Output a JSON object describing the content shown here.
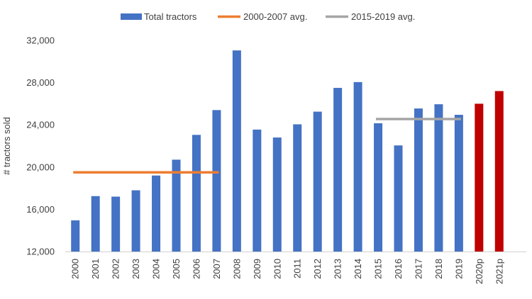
{
  "chart_data": {
    "type": "bar",
    "title": "",
    "xlabel": "",
    "ylabel": "# tractors sold",
    "ylim": [
      12000,
      32000
    ],
    "yticks": [
      12000,
      16000,
      20000,
      24000,
      28000,
      32000
    ],
    "ytick_labels": [
      "12,000",
      "16,000",
      "20,000",
      "24,000",
      "28,000",
      "32,000"
    ],
    "grid": false,
    "legend_position": "top",
    "categories": [
      "2000",
      "2001",
      "2002",
      "2003",
      "2004",
      "2005",
      "2006",
      "2007",
      "2008",
      "2009",
      "2010",
      "2011",
      "2012",
      "2013",
      "2014",
      "2015",
      "2016",
      "2017",
      "2018",
      "2019",
      "2020p",
      "2021p"
    ],
    "values": [
      14950,
      17250,
      17200,
      17800,
      19200,
      20700,
      23050,
      25400,
      31050,
      23550,
      22800,
      24050,
      25250,
      27500,
      28050,
      24150,
      22050,
      25550,
      25950,
      24950,
      26000,
      27200
    ],
    "bar_colors": [
      "#4472C4",
      "#4472C4",
      "#4472C4",
      "#4472C4",
      "#4472C4",
      "#4472C4",
      "#4472C4",
      "#4472C4",
      "#4472C4",
      "#4472C4",
      "#4472C4",
      "#4472C4",
      "#4472C4",
      "#4472C4",
      "#4472C4",
      "#4472C4",
      "#4472C4",
      "#4472C4",
      "#4472C4",
      "#4472C4",
      "#C00000",
      "#C00000"
    ],
    "series": [
      {
        "name": "Total tractors",
        "kind": "bar",
        "color": "#4472C4"
      },
      {
        "name": "2000-2007 avg.",
        "kind": "line",
        "color": "#ED7D31",
        "value": 19500,
        "from": "2000",
        "to": "2007"
      },
      {
        "name": "2015-2019 avg.",
        "kind": "line",
        "color": "#A5A5A5",
        "value": 24550,
        "from": "2015",
        "to": "2019"
      }
    ],
    "axis_color": "#d0d0d0"
  }
}
